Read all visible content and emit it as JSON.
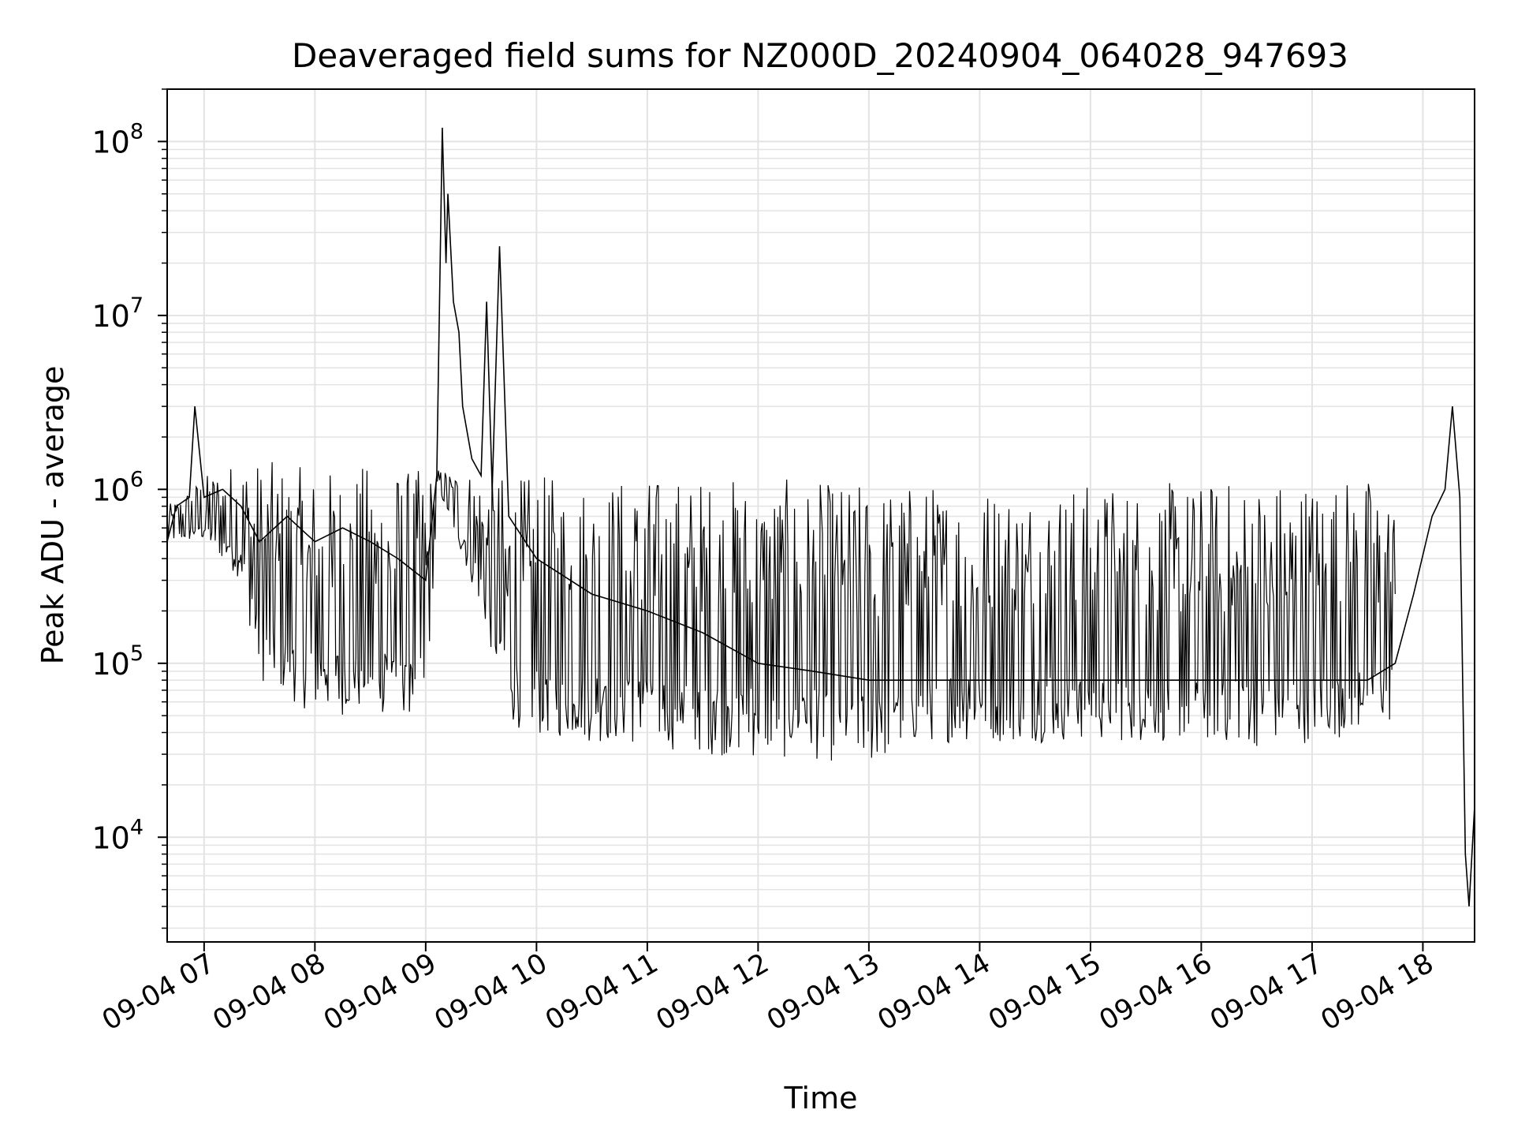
{
  "chart_data": {
    "type": "line",
    "title": "Deaveraged field sums for NZ000D_20240904_064028_947693",
    "xlabel": "Time",
    "ylabel": "Peak ADU - average",
    "y_scale": "log",
    "ylim": [
      2500,
      200000000
    ],
    "xlim": [
      "2024-09-04 06:40",
      "2024-09-04 18:28"
    ],
    "grid": true,
    "grid_minor": true,
    "legend": "none",
    "line_color": "#000000",
    "x_ticks": [
      "09-04 07",
      "09-04 08",
      "09-04 09",
      "09-04 10",
      "09-04 11",
      "09-04 12",
      "09-04 13",
      "09-04 14",
      "09-04 15",
      "09-04 16",
      "09-04 17",
      "09-04 18"
    ],
    "y_ticks": [
      {
        "base": "10",
        "exp": "4"
      },
      {
        "base": "10",
        "exp": "5"
      },
      {
        "base": "10",
        "exp": "6"
      },
      {
        "base": "10",
        "exp": "7"
      },
      {
        "base": "10",
        "exp": "8"
      }
    ],
    "series": [
      {
        "x": [
          "2024-09-04 06:40",
          "2024-09-04 06:45",
          "2024-09-04 06:52",
          "2024-09-04 06:55",
          "2024-09-04 07:00",
          "2024-09-04 07:10",
          "2024-09-04 07:20",
          "2024-09-04 07:30",
          "2024-09-04 07:45",
          "2024-09-04 08:00",
          "2024-09-04 08:15",
          "2024-09-04 08:30",
          "2024-09-04 08:45",
          "2024-09-04 09:00",
          "2024-09-04 09:06",
          "2024-09-04 09:09",
          "2024-09-04 09:11",
          "2024-09-04 09:12",
          "2024-09-04 09:15",
          "2024-09-04 09:18",
          "2024-09-04 09:20",
          "2024-09-04 09:25",
          "2024-09-04 09:30",
          "2024-09-04 09:33",
          "2024-09-04 09:36",
          "2024-09-04 09:40",
          "2024-09-04 09:45",
          "2024-09-04 10:00",
          "2024-09-04 10:30",
          "2024-09-04 11:00",
          "2024-09-04 11:30",
          "2024-09-04 12:00",
          "2024-09-04 12:30",
          "2024-09-04 13:00",
          "2024-09-04 13:30",
          "2024-09-04 14:00",
          "2024-09-04 14:30",
          "2024-09-04 15:00",
          "2024-09-04 15:30",
          "2024-09-04 16:00",
          "2024-09-04 16:30",
          "2024-09-04 17:00",
          "2024-09-04 17:30",
          "2024-09-04 17:45",
          "2024-09-04 17:55",
          "2024-09-04 18:05",
          "2024-09-04 18:12",
          "2024-09-04 18:16",
          "2024-09-04 18:20",
          "2024-09-04 18:23",
          "2024-09-04 18:25",
          "2024-09-04 18:28"
        ],
        "y": [
          500000,
          800000,
          900000,
          3000000,
          900000,
          1000000,
          800000,
          500000,
          700000,
          500000,
          600000,
          500000,
          400000,
          300000,
          1200000,
          120000000,
          20000000,
          50000000,
          12000000,
          8000000,
          3000000,
          1500000,
          1200000,
          12000000,
          1000000,
          25000000,
          700000,
          400000,
          250000,
          200000,
          150000,
          100000,
          90000,
          80000,
          80000,
          80000,
          80000,
          80000,
          80000,
          80000,
          80000,
          80000,
          80000,
          100000,
          250000,
          700000,
          1000000,
          3000000,
          900000,
          8000,
          4000,
          15000
        ]
      }
    ],
    "band": {
      "note": "dense noisy trace: per-period lower envelope and upper envelope of the signal",
      "x": [
        "2024-09-04 06:40",
        "2024-09-04 07:00",
        "2024-09-04 07:20",
        "2024-09-04 07:30",
        "2024-09-04 08:00",
        "2024-09-04 08:30",
        "2024-09-04 09:00",
        "2024-09-04 09:07",
        "2024-09-04 09:30",
        "2024-09-04 09:45",
        "2024-09-04 10:00",
        "2024-09-04 10:30",
        "2024-09-04 11:00",
        "2024-09-04 11:30",
        "2024-09-04 12:00",
        "2024-09-04 12:30",
        "2024-09-04 13:00",
        "2024-09-04 13:30",
        "2024-09-04 14:00",
        "2024-09-04 15:00",
        "2024-09-04 16:00",
        "2024-09-04 16:30",
        "2024-09-04 17:00",
        "2024-09-04 17:30",
        "2024-09-04 17:45"
      ],
      "low": [
        500000,
        500000,
        300000,
        80000,
        50000,
        50000,
        50000,
        1000000,
        200000,
        45000,
        38000,
        35000,
        33000,
        30000,
        28000,
        28000,
        25000,
        35000,
        35000,
        35000,
        35000,
        33000,
        35000,
        40000,
        45000
      ],
      "high": [
        800000,
        1200000,
        1500000,
        1500000,
        1300000,
        1400000,
        1300000,
        1300000,
        1300000,
        1200000,
        1200000,
        1200000,
        1200000,
        1200000,
        1200000,
        1100000,
        1100000,
        1100000,
        1100000,
        1100000,
        1100000,
        1200000,
        1200000,
        1200000,
        1000000
      ]
    }
  }
}
